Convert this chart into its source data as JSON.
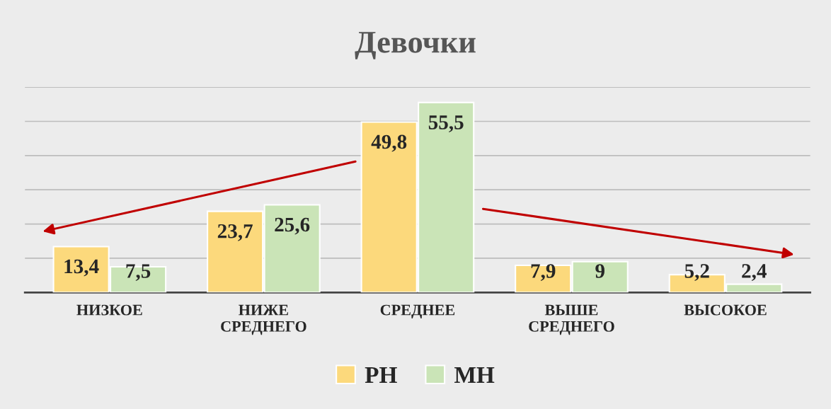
{
  "chart_data": {
    "type": "bar",
    "title": "Девочки",
    "categories": [
      "НИЗКОЕ",
      "НИЖЕ\nСРЕДНЕГО",
      "СРЕДНЕЕ",
      "ВЫШЕ\nСРЕДНЕГО",
      "ВЫСОКОЕ"
    ],
    "series": [
      {
        "name": "РН",
        "color": "#fcd97c",
        "values": [
          13.4,
          23.7,
          49.8,
          7.9,
          5.2
        ],
        "value_labels": [
          "13,4",
          "23,7",
          "49,8",
          "7,9",
          "5,2"
        ]
      },
      {
        "name": "МН",
        "color": "#cae4b7",
        "values": [
          7.5,
          25.6,
          55.5,
          9,
          2.4
        ],
        "value_labels": [
          "7,5",
          "25,6",
          "55,5",
          "9",
          "2,4"
        ]
      }
    ],
    "ylim": [
      0,
      60
    ],
    "yticks": [
      {
        "value": 0,
        "label": null
      },
      {
        "value": 10,
        "label": null
      },
      {
        "value": 20,
        "label": null
      },
      {
        "value": 30,
        "label": null
      },
      {
        "value": 40,
        "label": null
      },
      {
        "value": 50,
        "label": null
      },
      {
        "value": 60,
        "label": null
      }
    ],
    "tick_labels": "x",
    "grid": "y",
    "legend": "bottom"
  }
}
